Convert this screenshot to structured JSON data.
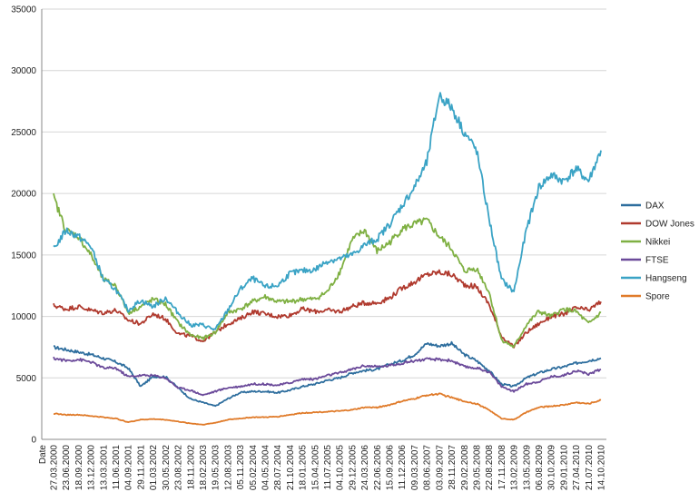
{
  "chart_data": {
    "type": "line",
    "title": "",
    "xlabel": "",
    "ylabel": "",
    "ylim": [
      0,
      35000
    ],
    "y_ticks": [
      0,
      5000,
      10000,
      15000,
      20000,
      25000,
      30000,
      35000
    ],
    "y_gridlines": true,
    "legend_position": "right",
    "x_first_label": "Date",
    "x_tick_labels": [
      "27.03.2000",
      "23.06.2000",
      "18.09.2000",
      "13.12.2000",
      "13.03.2001",
      "11.06.2001",
      "04.09.2001",
      "29.11.2001",
      "01.03.2002",
      "30.05.2002",
      "23.08.2002",
      "18.11.2002",
      "18.02.2003",
      "19.05.2003",
      "12.08.2003",
      "05.11.2003",
      "05.02.2004",
      "04.05.2004",
      "28.07.2004",
      "21.10.2004",
      "18.01.2005",
      "15.04.2005",
      "11.07.2005",
      "04.10.2005",
      "29.12.2005",
      "24.03.2006",
      "22.06.2006",
      "15.09.2006",
      "11.12.2006",
      "09.03.2007",
      "08.06.2007",
      "03.09.2007",
      "28.11.2007",
      "29.02.2008",
      "29.05.2008",
      "22.08.2008",
      "17.11.2008",
      "13.02.2009",
      "13.05.2009",
      "06.08.2009",
      "30.10.2009",
      "29.01.2010",
      "27.04.2010",
      "21.07.2010",
      "14.10.2010"
    ],
    "series": [
      {
        "name": "DAX",
        "color": "#2e6e9e",
        "values": [
          7500,
          7300,
          7100,
          6900,
          6600,
          6300,
          5800,
          4300,
          5100,
          5100,
          4200,
          3300,
          3000,
          2700,
          3300,
          3800,
          3900,
          3900,
          3800,
          4000,
          4300,
          4500,
          4800,
          5000,
          5400,
          5600,
          5700,
          6100,
          6400,
          6900,
          7800,
          7600,
          7800,
          6900,
          6400,
          5600,
          4500,
          4300,
          5000,
          5400,
          5700,
          5900,
          6200,
          6400,
          6600
        ]
      },
      {
        "name": "DOW Jones",
        "color": "#b03a2e",
        "values": [
          10900,
          10600,
          10800,
          10500,
          10300,
          10500,
          9700,
          9400,
          10200,
          9800,
          8600,
          8400,
          8000,
          8700,
          9400,
          9800,
          10400,
          10200,
          10000,
          10100,
          10600,
          10400,
          10500,
          10400,
          10800,
          11100,
          11100,
          11500,
          12300,
          12800,
          13400,
          13600,
          13400,
          12600,
          12400,
          11000,
          8400,
          7500,
          8700,
          9400,
          10000,
          10200,
          10700,
          10500,
          11200
        ]
      },
      {
        "name": "Nikkei",
        "color": "#7fb043",
        "values": [
          19700,
          17000,
          16500,
          15000,
          13000,
          12500,
          10300,
          10800,
          11400,
          11000,
          9500,
          8500,
          8200,
          8700,
          10300,
          10600,
          11200,
          11600,
          11200,
          11200,
          11400,
          11400,
          12000,
          13600,
          16200,
          17000,
          15300,
          16000,
          17100,
          17500,
          17800,
          16500,
          15500,
          13700,
          13900,
          12000,
          8100,
          7500,
          9300,
          10400,
          10000,
          10600,
          10400,
          9400,
          10300
        ]
      },
      {
        "name": "FTSE",
        "color": "#6b4a9a",
        "values": [
          6600,
          6400,
          6500,
          6300,
          5800,
          5800,
          5100,
          5200,
          5200,
          5000,
          4200,
          4000,
          3600,
          3900,
          4200,
          4300,
          4500,
          4500,
          4400,
          4600,
          4900,
          4900,
          5200,
          5400,
          5700,
          6000,
          5900,
          6000,
          6200,
          6400,
          6500,
          6500,
          6400,
          5900,
          5800,
          5500,
          4300,
          3900,
          4500,
          4700,
          5100,
          5200,
          5600,
          5300,
          5700
        ]
      },
      {
        "name": "Hangseng",
        "color": "#3aa3c5",
        "values": [
          15500,
          17000,
          16500,
          15700,
          13000,
          12200,
          10500,
          11300,
          10800,
          11500,
          10300,
          9300,
          9300,
          8900,
          10500,
          12200,
          13100,
          12400,
          12500,
          13500,
          13700,
          13800,
          14500,
          14700,
          15000,
          15800,
          16300,
          17500,
          19000,
          20500,
          22500,
          28000,
          27000,
          25000,
          23500,
          18000,
          13000,
          12000,
          17000,
          20500,
          21500,
          21000,
          22000,
          21000,
          23500
        ]
      },
      {
        "name": "Spore",
        "color": "#e07b2a",
        "values": [
          2100,
          2000,
          2000,
          1900,
          1800,
          1700,
          1400,
          1600,
          1650,
          1600,
          1450,
          1300,
          1200,
          1350,
          1600,
          1700,
          1800,
          1800,
          1850,
          2000,
          2150,
          2200,
          2250,
          2300,
          2400,
          2600,
          2600,
          2800,
          3100,
          3300,
          3600,
          3700,
          3400,
          3100,
          2900,
          2400,
          1700,
          1600,
          2200,
          2600,
          2700,
          2800,
          3000,
          2900,
          3200
        ]
      }
    ]
  }
}
